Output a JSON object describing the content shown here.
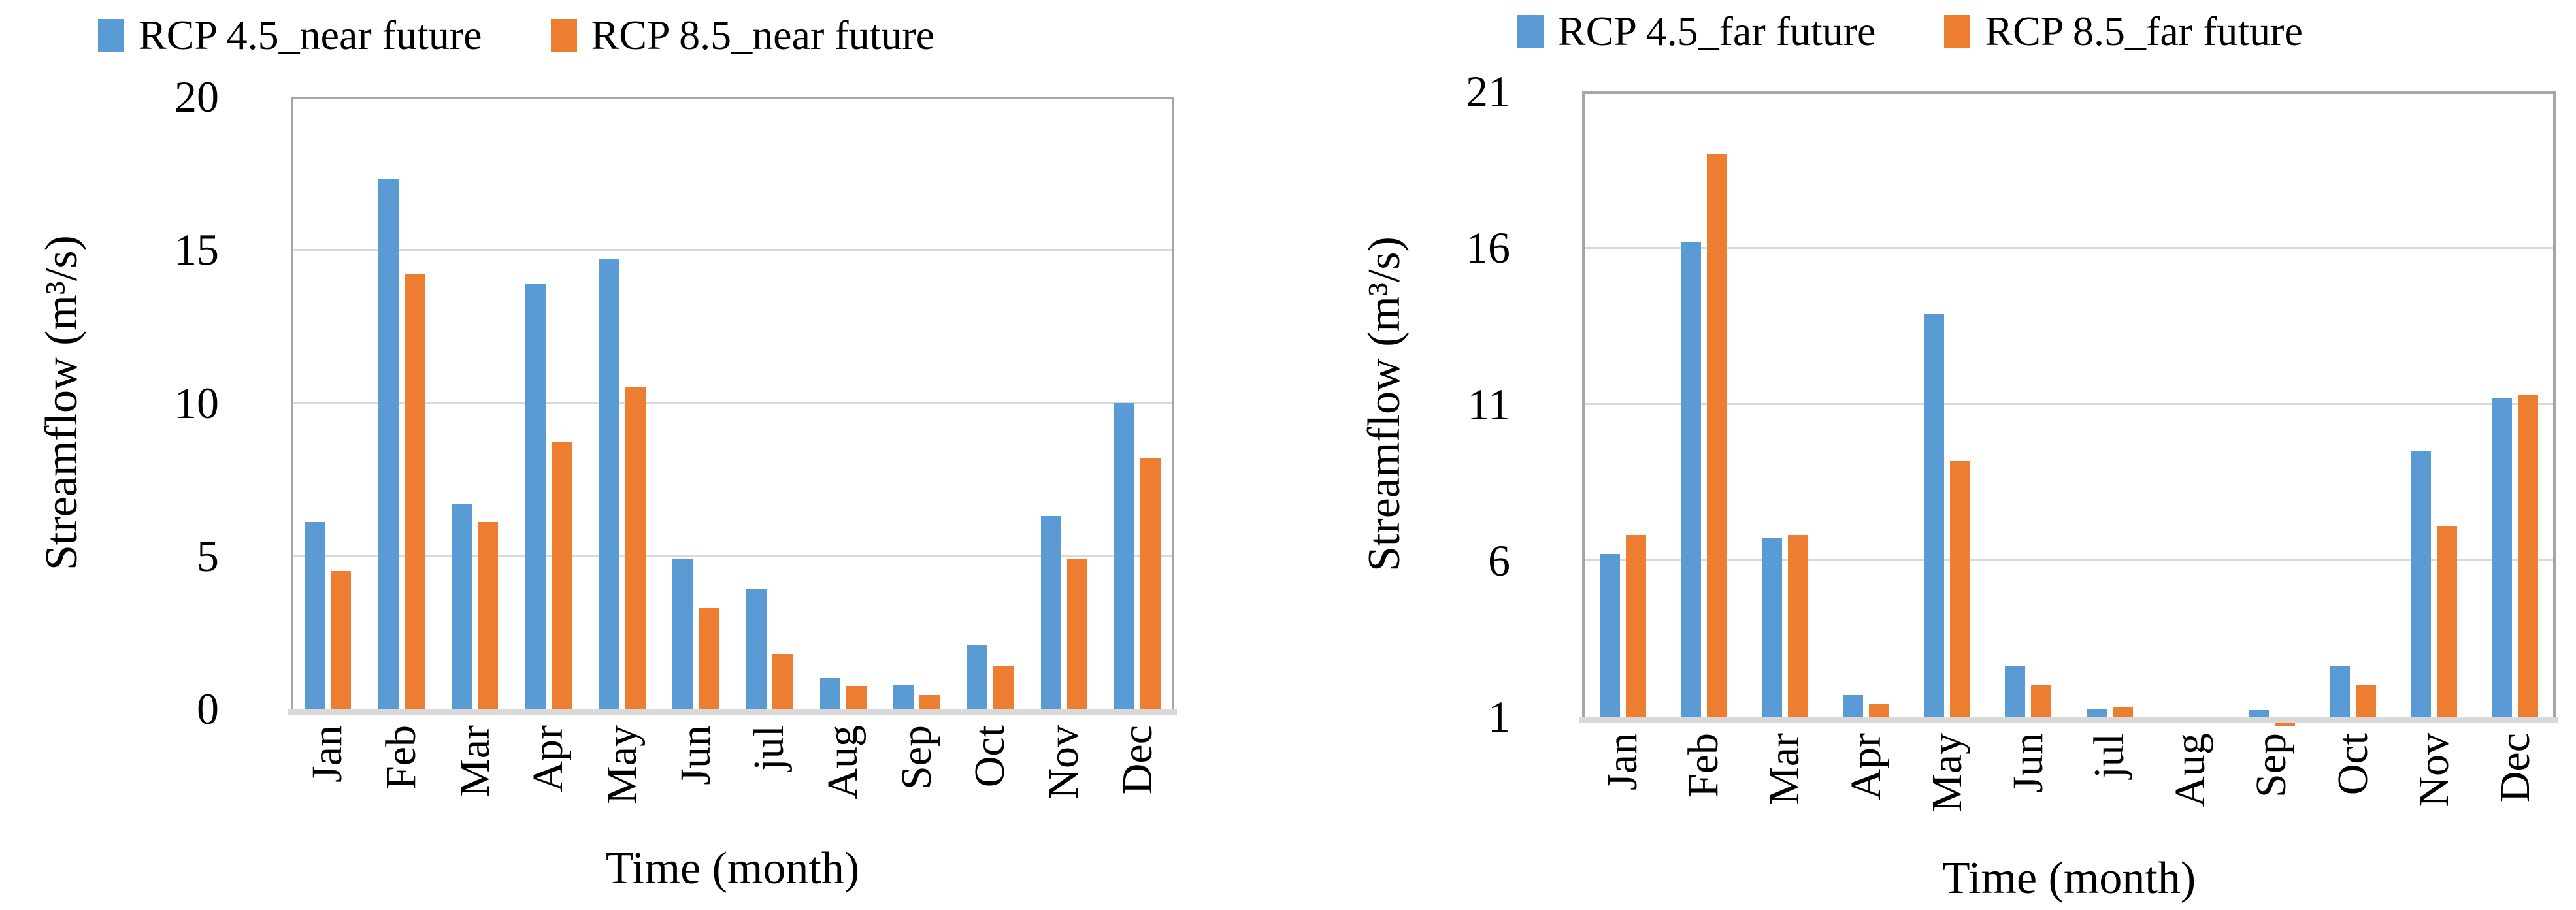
{
  "figure": {
    "background": "#ffffff",
    "text_color": "#000000",
    "gridline_color": "#d9d9d9",
    "plot_border_color": "#a6a6a6",
    "series_colors": {
      "blue": "#5B9BD5",
      "orange": "#ED7D31"
    }
  },
  "chart_data": [
    {
      "type": "bar",
      "panel": "left",
      "legend_position": "top",
      "grid": true,
      "categories": [
        "Jan",
        "Feb",
        "Mar",
        "Apr",
        "May",
        "Jun",
        "jul",
        "Aug",
        "Sep",
        "Oct",
        "Nov",
        "Dec"
      ],
      "xlabel": "Time (month)",
      "ylabel": "Streamflow (m³/s)",
      "ylim": [
        0,
        20
      ],
      "yticks": [
        0,
        5,
        10,
        15,
        20
      ],
      "series": [
        {
          "name": "RCP 4.5_near future",
          "color": "#5B9BD5",
          "values": [
            6.1,
            17.3,
            6.7,
            13.9,
            14.7,
            4.9,
            3.9,
            1.0,
            0.8,
            2.1,
            6.3,
            10.0
          ]
        },
        {
          "name": "RCP 8.5_near future",
          "color": "#ED7D31",
          "values": [
            4.5,
            14.2,
            6.1,
            8.7,
            10.5,
            3.3,
            1.8,
            0.75,
            0.45,
            1.4,
            4.9,
            8.2
          ]
        }
      ]
    },
    {
      "type": "bar",
      "panel": "right",
      "legend_position": "top",
      "grid": true,
      "categories": [
        "Jan",
        "Feb",
        "Mar",
        "Apr",
        "May",
        "Jun",
        "jul",
        "Aug",
        "Sep",
        "Oct",
        "Nov",
        "Dec"
      ],
      "xlabel": "Time (month)",
      "ylabel": "Streamflow (m³/s)",
      "ylim": [
        1,
        21
      ],
      "yticks": [
        1,
        6,
        11,
        16,
        21
      ],
      "series": [
        {
          "name": "RCP 4.5_far future",
          "color": "#5B9BD5",
          "values": [
            6.2,
            16.2,
            6.7,
            1.7,
            13.9,
            2.6,
            1.25,
            1.0,
            1.2,
            2.6,
            9.5,
            11.2
          ]
        },
        {
          "name": "RCP 8.5_far future",
          "color": "#ED7D31",
          "values": [
            6.8,
            19.0,
            6.8,
            1.4,
            9.2,
            2.0,
            1.3,
            1.0,
            0.9,
            2.0,
            7.1,
            11.3
          ]
        }
      ]
    }
  ]
}
